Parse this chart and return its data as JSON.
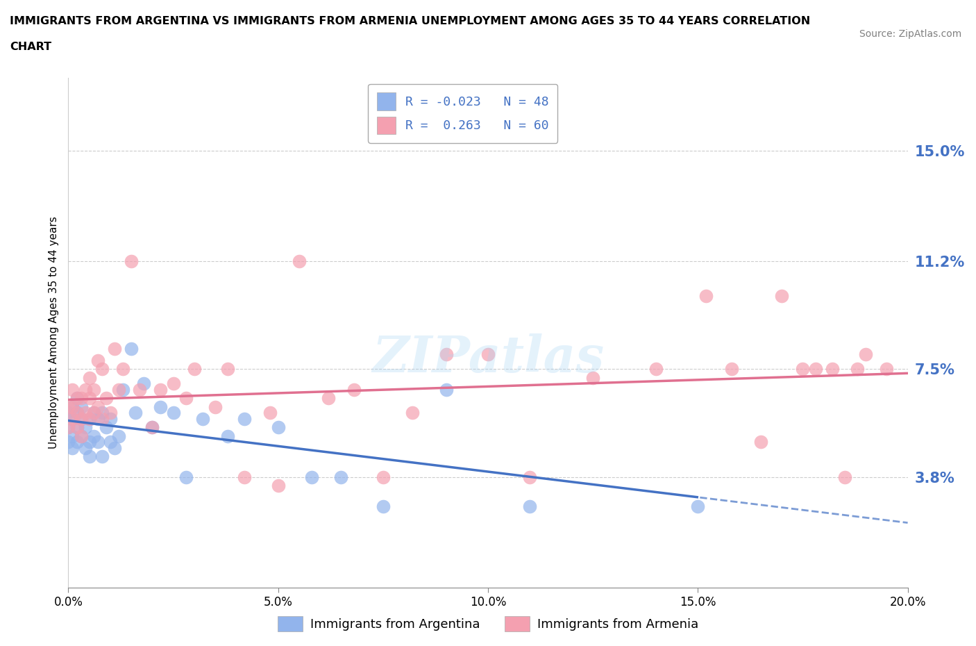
{
  "title_line1": "IMMIGRANTS FROM ARGENTINA VS IMMIGRANTS FROM ARMENIA UNEMPLOYMENT AMONG AGES 35 TO 44 YEARS CORRELATION",
  "title_line2": "CHART",
  "source": "Source: ZipAtlas.com",
  "ylabel": "Unemployment Among Ages 35 to 44 years",
  "xlim": [
    0.0,
    0.2
  ],
  "ylim": [
    0.0,
    0.175
  ],
  "yticks": [
    0.038,
    0.075,
    0.112,
    0.15
  ],
  "ytick_labels": [
    "3.8%",
    "7.5%",
    "11.2%",
    "15.0%"
  ],
  "xticks": [
    0.0,
    0.05,
    0.1,
    0.15,
    0.2
  ],
  "xtick_labels": [
    "0.0%",
    "5.0%",
    "10.0%",
    "15.0%",
    "20.0%"
  ],
  "color_argentina": "#92b4ec",
  "color_armenia": "#f4a0b0",
  "trendline_argentina_solid": "#4472c4",
  "trendline_armenia": "#e07090",
  "R_argentina": -0.023,
  "N_argentina": 48,
  "R_armenia": 0.263,
  "N_armenia": 60,
  "argentina_x": [
    0.0,
    0.0,
    0.0,
    0.001,
    0.001,
    0.001,
    0.001,
    0.002,
    0.002,
    0.002,
    0.002,
    0.003,
    0.003,
    0.003,
    0.004,
    0.004,
    0.005,
    0.005,
    0.005,
    0.006,
    0.006,
    0.007,
    0.007,
    0.008,
    0.008,
    0.009,
    0.01,
    0.01,
    0.011,
    0.012,
    0.013,
    0.015,
    0.016,
    0.018,
    0.02,
    0.022,
    0.025,
    0.028,
    0.032,
    0.038,
    0.042,
    0.05,
    0.058,
    0.065,
    0.075,
    0.09,
    0.11,
    0.15
  ],
  "argentina_y": [
    0.05,
    0.055,
    0.06,
    0.048,
    0.052,
    0.058,
    0.062,
    0.05,
    0.055,
    0.06,
    0.065,
    0.052,
    0.058,
    0.062,
    0.048,
    0.055,
    0.045,
    0.05,
    0.058,
    0.052,
    0.06,
    0.05,
    0.058,
    0.045,
    0.06,
    0.055,
    0.05,
    0.058,
    0.048,
    0.052,
    0.068,
    0.082,
    0.06,
    0.07,
    0.055,
    0.062,
    0.06,
    0.038,
    0.058,
    0.052,
    0.058,
    0.055,
    0.038,
    0.038,
    0.028,
    0.068,
    0.028,
    0.028
  ],
  "armenia_x": [
    0.0,
    0.0,
    0.001,
    0.001,
    0.001,
    0.002,
    0.002,
    0.002,
    0.003,
    0.003,
    0.003,
    0.004,
    0.004,
    0.005,
    0.005,
    0.005,
    0.006,
    0.006,
    0.007,
    0.007,
    0.008,
    0.008,
    0.009,
    0.01,
    0.011,
    0.012,
    0.013,
    0.015,
    0.017,
    0.02,
    0.022,
    0.025,
    0.028,
    0.03,
    0.035,
    0.038,
    0.042,
    0.048,
    0.05,
    0.055,
    0.062,
    0.068,
    0.075,
    0.082,
    0.09,
    0.1,
    0.11,
    0.125,
    0.14,
    0.152,
    0.158,
    0.165,
    0.17,
    0.175,
    0.178,
    0.182,
    0.185,
    0.188,
    0.19,
    0.195
  ],
  "armenia_y": [
    0.055,
    0.062,
    0.058,
    0.062,
    0.068,
    0.055,
    0.06,
    0.065,
    0.052,
    0.058,
    0.065,
    0.06,
    0.068,
    0.072,
    0.058,
    0.065,
    0.06,
    0.068,
    0.078,
    0.062,
    0.058,
    0.075,
    0.065,
    0.06,
    0.082,
    0.068,
    0.075,
    0.112,
    0.068,
    0.055,
    0.068,
    0.07,
    0.065,
    0.075,
    0.062,
    0.075,
    0.038,
    0.06,
    0.035,
    0.112,
    0.065,
    0.068,
    0.038,
    0.06,
    0.08,
    0.08,
    0.038,
    0.072,
    0.075,
    0.1,
    0.075,
    0.05,
    0.1,
    0.075,
    0.075,
    0.075,
    0.038,
    0.075,
    0.08,
    0.075
  ],
  "watermark": "ZIPatlas",
  "background_color": "#ffffff",
  "grid_color": "#cccccc",
  "tick_color": "#4472c4",
  "legend_text_color": "#4472c4"
}
